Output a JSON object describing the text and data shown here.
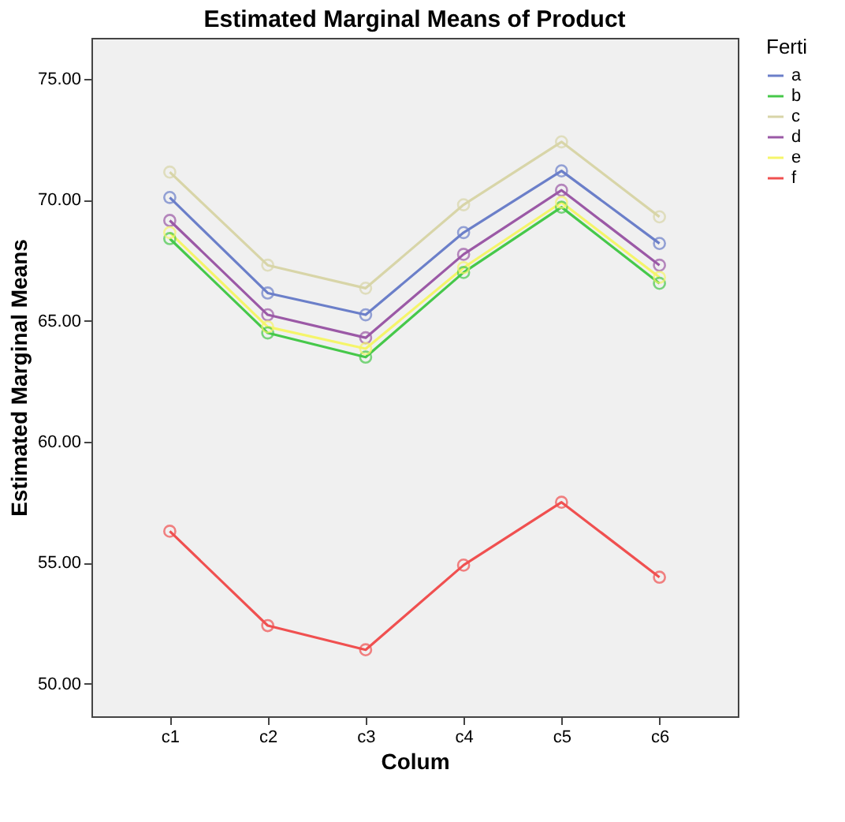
{
  "chart_data": {
    "type": "line",
    "title": "Estimated Marginal Means of Product",
    "xlabel": "Colum",
    "ylabel": "Estimated Marginal Means",
    "legend_title": "Ferti",
    "categories": [
      "c1",
      "c2",
      "c3",
      "c4",
      "c5",
      "c6"
    ],
    "series": [
      {
        "name": "a",
        "color": "#6b7fc9",
        "values": [
          70.1,
          66.15,
          65.25,
          68.65,
          71.2,
          68.2
        ]
      },
      {
        "name": "b",
        "color": "#46c84a",
        "values": [
          68.4,
          64.5,
          63.5,
          67.0,
          69.7,
          66.55
        ]
      },
      {
        "name": "c",
        "color": "#d8d5a8",
        "values": [
          71.15,
          67.3,
          66.35,
          69.8,
          72.4,
          69.3
        ]
      },
      {
        "name": "d",
        "color": "#9b59a6",
        "values": [
          69.15,
          65.25,
          64.3,
          67.75,
          70.4,
          67.3
        ]
      },
      {
        "name": "e",
        "color": "#f5f56a",
        "values": [
          68.65,
          64.75,
          63.85,
          67.2,
          69.9,
          66.8
        ]
      },
      {
        "name": "f",
        "color": "#f05050",
        "values": [
          56.3,
          52.4,
          51.4,
          54.9,
          57.5,
          54.4
        ]
      }
    ],
    "ylim": [
      48.65,
      76.7
    ],
    "yticks": [
      {
        "value": 50,
        "label": "50.00"
      },
      {
        "value": 55,
        "label": "55.00"
      },
      {
        "value": 60,
        "label": "60.00"
      },
      {
        "value": 65,
        "label": "65.00"
      },
      {
        "value": 70,
        "label": "70.00"
      },
      {
        "value": 75,
        "label": "75.00"
      }
    ],
    "grid": false,
    "legend": "top right",
    "marker": "circle",
    "line_style": "solid"
  }
}
